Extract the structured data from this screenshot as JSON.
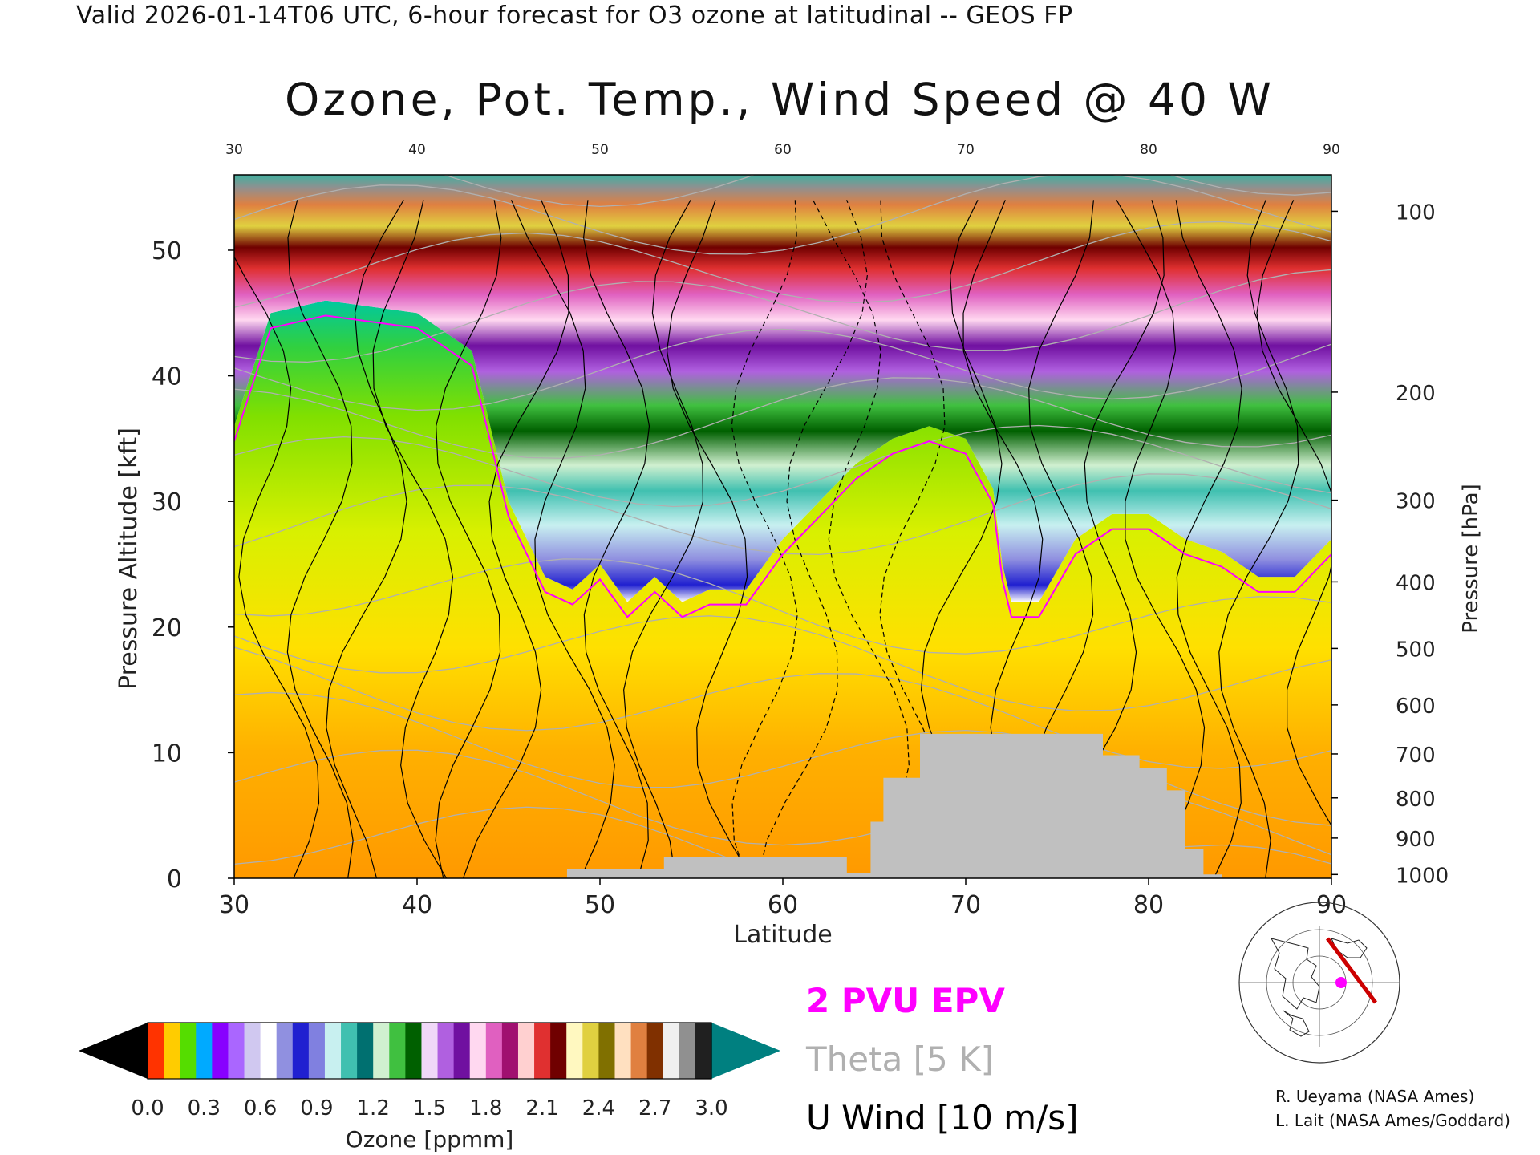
{
  "valid_line": "Valid 2026-01-14T06 UTC, 6-hour forecast for O3 ozone at latitudinal -- GEOS FP",
  "chart_data": {
    "type": "heatmap",
    "title": "Ozone, Pot. Temp., Wind Speed @ 40 W",
    "xlabel": "Latitude",
    "ylabel": "Pressure Altitude [kft]",
    "ylabel_right": "Pressure [hPa]",
    "xlim": [
      30,
      90
    ],
    "ylim": [
      0,
      56
    ],
    "x_ticks": [
      30,
      40,
      50,
      60,
      70,
      80,
      90
    ],
    "x_ticks_top": [
      30,
      40,
      50,
      60,
      70,
      80,
      90
    ],
    "y_ticks": [
      0,
      10,
      20,
      30,
      40,
      50
    ],
    "pressure_ticks": [
      {
        "hPa": "100",
        "kft": 53.1
      },
      {
        "hPa": "200",
        "kft": 38.7
      },
      {
        "hPa": "300",
        "kft": 30.1
      },
      {
        "hPa": "400",
        "kft": 23.6
      },
      {
        "hPa": "500",
        "kft": 18.3
      },
      {
        "hPa": "600",
        "kft": 13.8
      },
      {
        "hPa": "700",
        "kft": 9.9
      },
      {
        "hPa": "800",
        "kft": 6.4
      },
      {
        "hPa": "900",
        "kft": 3.2
      },
      {
        "hPa": "1000",
        "kft": 0.3
      }
    ],
    "tropopause_kft": [
      [
        30,
        36
      ],
      [
        32,
        45
      ],
      [
        35,
        46
      ],
      [
        40,
        45
      ],
      [
        43,
        42
      ],
      [
        45,
        30
      ],
      [
        47,
        24
      ],
      [
        48.5,
        23
      ],
      [
        50,
        25
      ],
      [
        51.5,
        22
      ],
      [
        53,
        24
      ],
      [
        54.5,
        22
      ],
      [
        56,
        23
      ],
      [
        58,
        23
      ],
      [
        60,
        27
      ],
      [
        62,
        30
      ],
      [
        64,
        33
      ],
      [
        66,
        35
      ],
      [
        68,
        36
      ],
      [
        70,
        35
      ],
      [
        71.5,
        31
      ],
      [
        72,
        25
      ],
      [
        72.5,
        22
      ],
      [
        74,
        22
      ],
      [
        76,
        27
      ],
      [
        78,
        29
      ],
      [
        80,
        29
      ],
      [
        82,
        27
      ],
      [
        84,
        26
      ],
      [
        86,
        24
      ],
      [
        88,
        24
      ],
      [
        90,
        27
      ]
    ],
    "topography_kft": [
      [
        48.2,
        0.7
      ],
      [
        53.5,
        1.7
      ],
      [
        62.2,
        1.7
      ],
      [
        63.5,
        0.4
      ],
      [
        64.8,
        4.5
      ],
      [
        65.5,
        8
      ],
      [
        67.5,
        11.5
      ],
      [
        76.5,
        11.5
      ],
      [
        77.5,
        9.8
      ],
      [
        79.5,
        8.8
      ],
      [
        81,
        7
      ],
      [
        82,
        2.3
      ],
      [
        83,
        0.3
      ]
    ],
    "colorbar": {
      "label": "Ozone [ppmm]",
      "ticks": [
        "0.0",
        "0.3",
        "0.6",
        "0.9",
        "1.2",
        "1.5",
        "1.8",
        "2.1",
        "2.4",
        "2.7",
        "3.0"
      ],
      "colors": [
        "#ff3300",
        "#ffcc00",
        "#55dd00",
        "#00aaff",
        "#8800ff",
        "#aa66ff",
        "#d0c8f0",
        "#ffffff",
        "#9090e0",
        "#2020d0",
        "#8080e0",
        "#c8f0f0",
        "#40c0b0",
        "#007070",
        "#d0f0d0",
        "#40c040",
        "#006000",
        "#f0d8f8",
        "#b060e0",
        "#7010a0",
        "#ffd8f0",
        "#e060c0",
        "#a01070",
        "#ffd0d0",
        "#e03030",
        "#700000",
        "#fff8c0",
        "#e0d040",
        "#807000",
        "#ffe0c0",
        "#e08040",
        "#803000",
        "#f0f0f0",
        "#909090",
        "#202020"
      ],
      "under_color": "#000000",
      "over_color": "#008080"
    },
    "colors": {
      "epv": "#ff00ff",
      "theta": "#b0b0b0",
      "wind": "#000000",
      "topography": "#c0c0c0"
    }
  },
  "legend": {
    "epv": "2 PVU EPV",
    "theta": "Theta [5 K]",
    "wind": "U Wind [10 m/s]"
  },
  "map_inset": {
    "icon": "polar-map-icon",
    "marker_color": "#ff00ff",
    "track_color": "#cc0000"
  },
  "credits": [
    "R. Ueyama (NASA Ames)",
    "L. Lait (NASA Ames/Goddard)"
  ]
}
